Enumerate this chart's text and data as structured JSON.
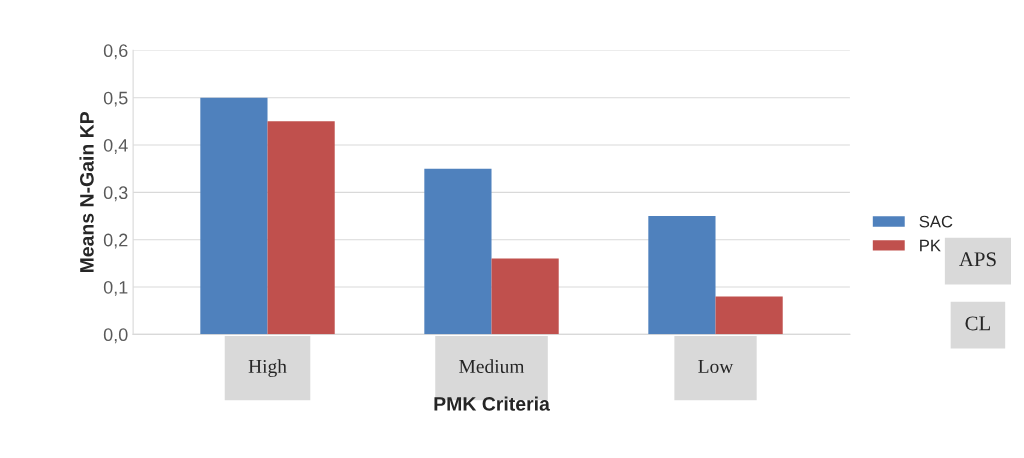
{
  "chart_data": {
    "type": "bar",
    "xlabel": "PMK Criteria",
    "ylabel": "Means N-Gain KP",
    "categories": [
      "High",
      "Medium",
      "Low"
    ],
    "series": [
      {
        "name": "SAC",
        "color": "#4f81bd",
        "values": [
          0.5,
          0.35,
          0.25
        ]
      },
      {
        "name": "PK",
        "color": "#c0504d",
        "values": [
          0.45,
          0.16,
          0.08
        ]
      }
    ],
    "ylim": [
      0,
      0.6
    ],
    "yticks": [
      {
        "value": 0,
        "label": "0,0"
      },
      {
        "value": 0.1,
        "label": "0,1"
      },
      {
        "value": 0.2,
        "label": "0,2"
      },
      {
        "value": 0.3,
        "label": "0,3"
      },
      {
        "value": 0.4,
        "label": "0,4"
      },
      {
        "value": 0.5,
        "label": "0,5"
      },
      {
        "value": 0.6,
        "label": "0,6"
      }
    ],
    "grid": "y",
    "legend": "right",
    "annotations": [
      "APS",
      "CL"
    ]
  }
}
